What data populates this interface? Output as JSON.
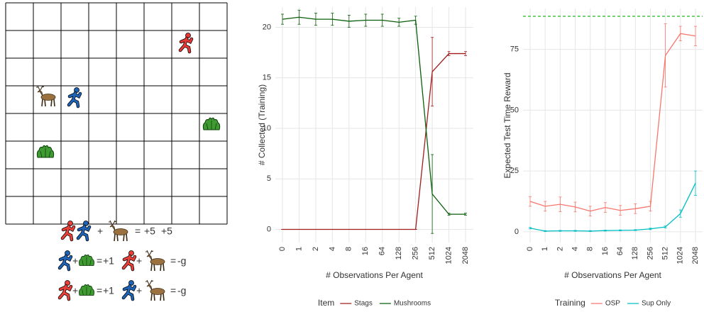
{
  "diagram": {
    "rules": [
      {
        "op": "+",
        "eq": "=",
        "rewards": [
          "+5",
          "+5"
        ]
      },
      {
        "op": "+",
        "eq": "=",
        "rewards": [
          "+1"
        ]
      },
      {
        "op": "+",
        "eq": "=",
        "rewards": [
          "-g"
        ]
      },
      {
        "op": "+",
        "eq": "=",
        "rewards": [
          "+1"
        ]
      },
      {
        "op": "+",
        "eq": "=",
        "rewards": [
          "-g"
        ]
      }
    ]
  },
  "chart_data": [
    {
      "type": "line",
      "y_label": "# Collected (Training)",
      "x_label": "# Observations Per Agent",
      "legend_title": "Item",
      "legend": "bottom",
      "grid": true,
      "categories": [
        "0",
        "1",
        "2",
        "4",
        "8",
        "16",
        "64",
        "128",
        "256",
        "512",
        "1024",
        "2048"
      ],
      "ylim": [
        -1.3,
        22
      ],
      "yticks": [
        0,
        5,
        10,
        15,
        20
      ],
      "series": [
        {
          "name": "Stags",
          "color": "#a11d1d",
          "values": [
            0,
            0,
            0,
            0,
            0,
            0,
            0,
            0,
            0,
            15.6,
            17.4,
            17.4
          ],
          "errors": [
            0,
            0,
            0,
            0,
            0,
            0,
            0,
            0,
            0,
            3.4,
            0.2,
            0.2
          ]
        },
        {
          "name": "Mushrooms",
          "color": "#0a5e0a",
          "values": [
            20.8,
            21.0,
            20.8,
            20.8,
            20.6,
            20.7,
            20.7,
            20.5,
            20.7,
            3.5,
            1.5,
            1.5
          ],
          "errors": [
            0.5,
            0.7,
            0.6,
            0.6,
            0.6,
            0.6,
            0.6,
            0.4,
            0.4,
            3.9,
            0.1,
            0.1
          ]
        }
      ]
    },
    {
      "type": "line",
      "y_label": "Expected Test Time Reward",
      "x_label": "# Observations Per Agent",
      "legend_title": "Training",
      "legend": "bottom",
      "grid": true,
      "categories": [
        "0",
        "1",
        "2",
        "4",
        "8",
        "16",
        "64",
        "128",
        "256",
        "512",
        "1024",
        "2048"
      ],
      "ylim": [
        -4.4,
        91.8
      ],
      "yticks": [
        0,
        25,
        50,
        75
      ],
      "reference_line": {
        "value": 88.6,
        "color": "#22bb22"
      },
      "series": [
        {
          "name": "OSP",
          "color": "#f8766d",
          "values": [
            12.5,
            10.5,
            11.3,
            10.2,
            8.5,
            10.0,
            8.8,
            9.5,
            10.5,
            72.5,
            81.5,
            80.5
          ],
          "errors": [
            2,
            2,
            3,
            2,
            2,
            2,
            2,
            2,
            2,
            13,
            3,
            4
          ]
        },
        {
          "name": "Sup Only",
          "color": "#00bfc4",
          "values": [
            1.5,
            0.3,
            0.4,
            0.4,
            0.3,
            0.5,
            0.6,
            0.7,
            1.2,
            2.0,
            7.5,
            20.0
          ],
          "errors": [
            0.3,
            0.2,
            0.2,
            0.2,
            0.2,
            0.2,
            0.2,
            0.2,
            0.3,
            0.4,
            1.5,
            5
          ]
        }
      ]
    }
  ]
}
